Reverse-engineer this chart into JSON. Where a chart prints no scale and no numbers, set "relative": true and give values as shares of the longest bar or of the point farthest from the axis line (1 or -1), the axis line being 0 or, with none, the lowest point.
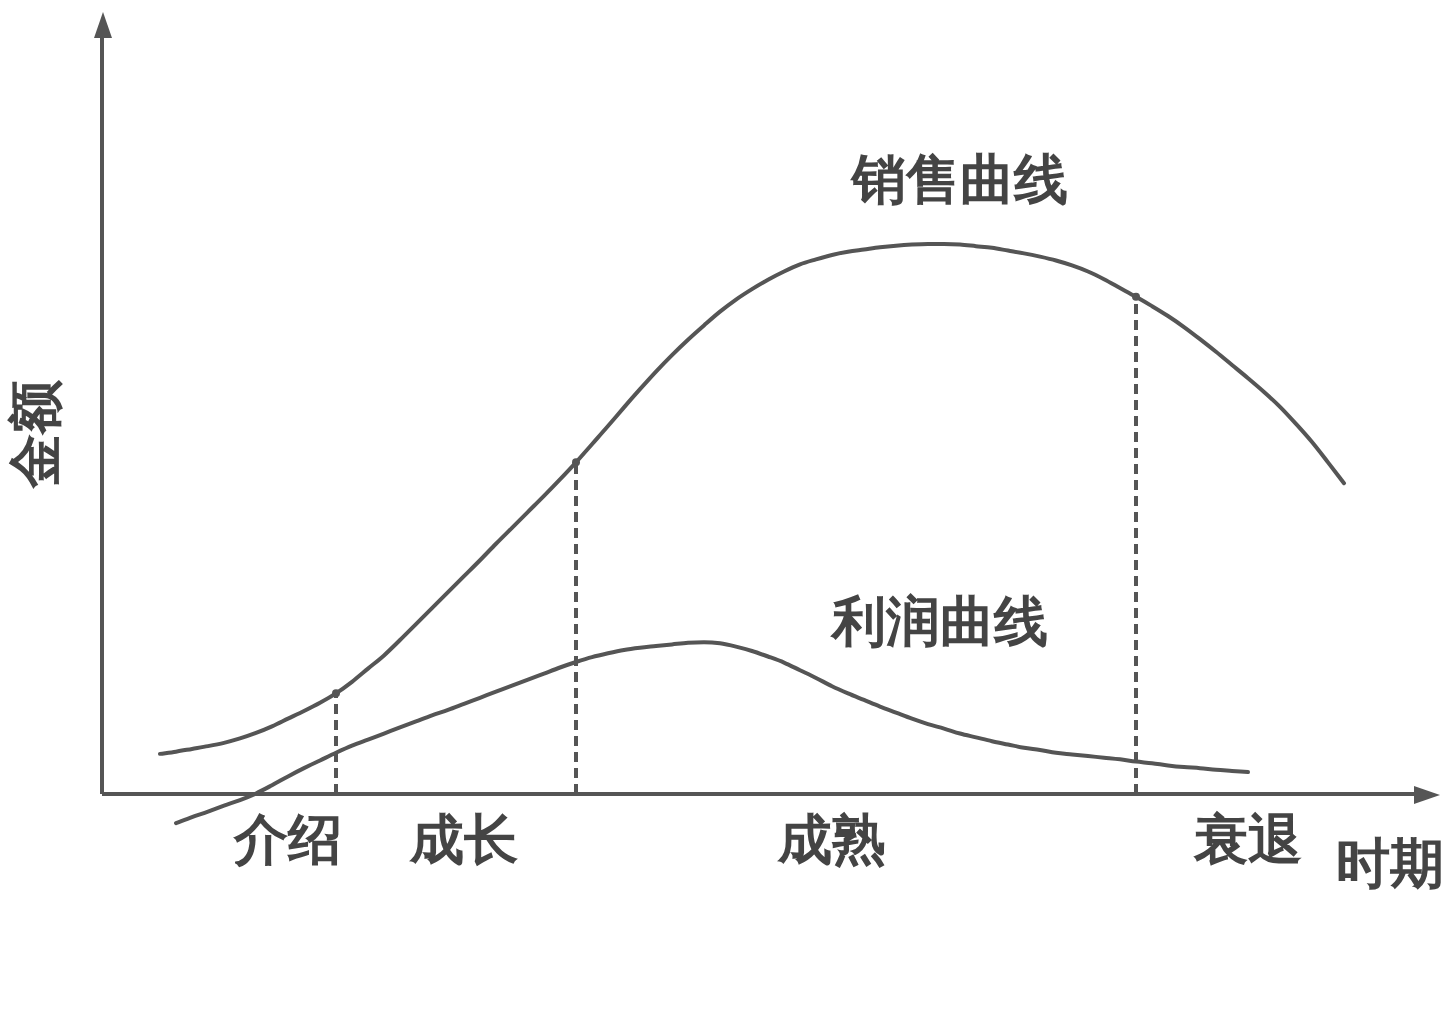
{
  "chart_data": {
    "type": "line",
    "relative": true,
    "xlabel": "时期",
    "ylabel": "金额",
    "categories": [
      null,
      null,
      null,
      null,
      null,
      null,
      null,
      null,
      "介绍",
      null,
      null,
      null,
      null,
      null,
      null,
      null,
      null,
      null,
      null,
      "成长",
      null,
      null,
      null,
      null,
      null,
      null,
      null,
      null,
      null,
      null,
      null,
      null,
      null,
      null,
      null,
      null,
      null,
      null,
      null,
      null,
      null,
      null,
      "成熟",
      null,
      null,
      null,
      null,
      null,
      null,
      null,
      null,
      null,
      null,
      null,
      null,
      null,
      null,
      null,
      null,
      null,
      null,
      null,
      null,
      null,
      null,
      null,
      null,
      null,
      "衰退",
      null,
      null,
      null,
      null,
      null,
      null
    ],
    "series": [
      {
        "name": "销售曲线",
        "color": "#555555",
        "values": [
          0.073,
          0.077,
          0.082,
          0.087,
          0.093,
          0.101,
          0.111,
          0.123,
          0.137,
          0.151,
          0.166,
          0.183,
          0.204,
          0.228,
          0.252,
          0.28,
          0.309,
          0.338,
          0.367,
          0.396,
          0.425,
          0.455,
          0.484,
          0.513,
          0.542,
          0.572,
          0.603,
          0.636,
          0.669,
          0.703,
          0.736,
          0.768,
          0.798,
          0.826,
          0.852,
          0.877,
          0.899,
          0.918,
          0.935,
          0.95,
          0.963,
          0.972,
          0.98,
          0.986,
          0.99,
          0.994,
          0.997,
          0.999,
          1,
          1,
          0.999,
          0.996,
          0.993,
          0.988,
          0.983,
          0.977,
          0.97,
          0.961,
          0.95,
          0.936,
          0.92,
          0.904,
          0.887,
          0.869,
          0.849,
          0.827,
          0.804,
          0.78,
          0.756,
          0.731,
          0.704,
          0.673,
          0.64,
          0.603,
          0.565
        ]
      },
      {
        "name": "利润曲线",
        "color": "#555555",
        "values": [
          null,
          -0.053,
          -0.042,
          -0.032,
          -0.021,
          -0.011,
          0.001,
          0.016,
          0.032,
          0.047,
          0.061,
          0.075,
          0.088,
          0.099,
          0.11,
          0.121,
          0.132,
          0.143,
          0.153,
          0.164,
          0.175,
          0.186,
          0.197,
          0.208,
          0.219,
          0.23,
          0.24,
          0.249,
          0.256,
          0.262,
          0.266,
          0.269,
          0.272,
          0.275,
          0.276,
          0.274,
          0.268,
          0.26,
          0.25,
          0.239,
          0.225,
          0.211,
          0.196,
          0.183,
          0.171,
          0.159,
          0.148,
          0.137,
          0.127,
          0.119,
          0.11,
          0.103,
          0.096,
          0.09,
          0.084,
          0.08,
          0.075,
          0.072,
          0.069,
          0.066,
          0.063,
          0.059,
          0.056,
          0.052,
          0.049,
          0.047,
          0.044,
          0.042,
          0.04,
          null,
          null,
          null,
          null,
          null,
          null
        ]
      },
      {
        "type": "lollipop",
        "color": "#555555",
        "line_style": "dashed",
        "values": [
          null,
          null,
          null,
          null,
          null,
          null,
          null,
          null,
          null,
          null,
          null,
          0.183,
          null,
          null,
          null,
          null,
          null,
          null,
          null,
          null,
          null,
          null,
          null,
          null,
          null,
          null,
          0.603,
          null,
          null,
          null,
          null,
          null,
          null,
          null,
          null,
          null,
          null,
          null,
          null,
          null,
          null,
          null,
          null,
          null,
          null,
          null,
          null,
          null,
          null,
          null,
          null,
          null,
          null,
          null,
          null,
          null,
          null,
          null,
          null,
          null,
          null,
          0.904,
          null,
          null,
          null,
          null,
          null,
          null,
          null,
          null,
          null,
          null,
          null,
          null,
          null
        ]
      }
    ]
  }
}
